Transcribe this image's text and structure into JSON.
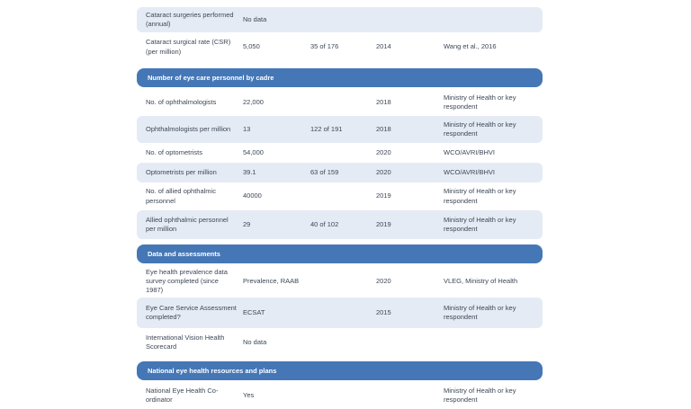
{
  "colors": {
    "section_header_bg": "#4577b6",
    "section_header_text": "#ffffff",
    "row_shaded_bg": "#e4ebf4",
    "body_text": "#3d4756",
    "page_bg": "#ffffff"
  },
  "sections": [
    {
      "title": "",
      "rows": [
        {
          "label": "Cataract surgeries performed (annual)",
          "value": "No data",
          "rank": "",
          "year": "",
          "source": ""
        },
        {
          "label": "Cataract surgical rate (CSR) (per million)",
          "value": "5,050",
          "rank": "35 of 176",
          "year": "2014",
          "source": "Wang et al., 2016"
        }
      ]
    },
    {
      "title": "Number of eye care personnel by cadre",
      "rows": [
        {
          "label": "No. of ophthalmologists",
          "value": "22,000",
          "rank": "",
          "year": "2018",
          "source": "Ministry of Health or key respondent"
        },
        {
          "label": "Ophthalmologists per million",
          "value": "13",
          "rank": "122 of 191",
          "year": "2018",
          "source": "Ministry of Health or key respondent"
        },
        {
          "label": "No. of optometrists",
          "value": "54,000",
          "rank": "",
          "year": "2020",
          "source": "WCO/AVRI/BHVI"
        },
        {
          "label": "Optometrists per million",
          "value": "39.1",
          "rank": "63 of 159",
          "year": "2020",
          "source": "WCO/AVRI/BHVI"
        },
        {
          "label": "No. of allied ophthalmic personnel",
          "value": "40000",
          "rank": "",
          "year": "2019",
          "source": "Ministry of Health or key respondent"
        },
        {
          "label": "Allied ophthalmic personnel per million",
          "value": "29",
          "rank": "40 of 102",
          "year": "2019",
          "source": "Ministry of Health or key respondent"
        }
      ]
    },
    {
      "title": "Data and assessments",
      "rows": [
        {
          "label": "Eye health prevalence data survey completed (since 1987)",
          "value": "Prevalence, RAAB",
          "rank": "",
          "year": "2020",
          "source": "VLEG, Ministry of Health"
        },
        {
          "label": "Eye Care Service Assessment completed?",
          "value": "ECSAT",
          "rank": "",
          "year": "2015",
          "source": "Ministry of Health or key respondent"
        },
        {
          "label": "International Vision Health Scorecard",
          "value": "No data",
          "rank": "",
          "year": "",
          "source": ""
        }
      ]
    },
    {
      "title": "National eye health resources and plans",
      "rows": [
        {
          "label": "National Eye Health Co-ordinator",
          "value": "Yes",
          "rank": "",
          "year": "",
          "source": "Ministry of Health or key respondent"
        }
      ]
    }
  ]
}
